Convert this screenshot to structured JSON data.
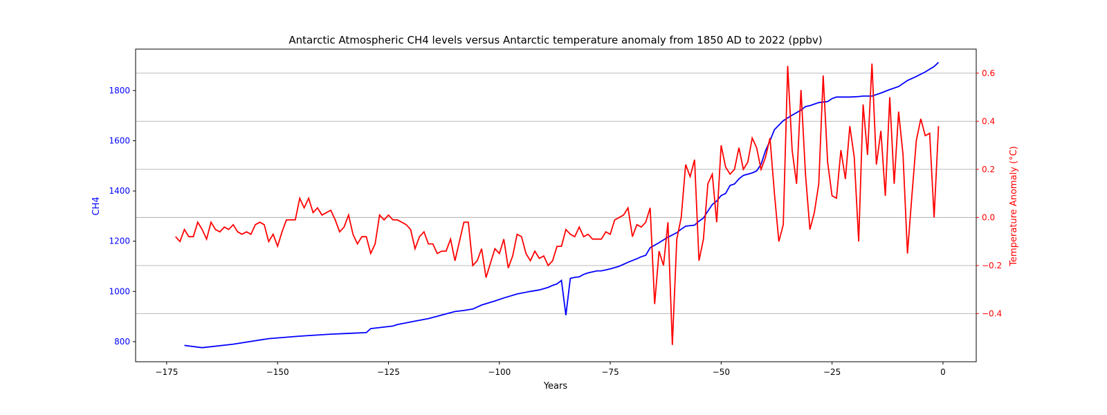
{
  "chart_data": {
    "type": "line",
    "title": "Antarctic Atmospheric CH4 levels versus Antarctic temperature anomaly from 1850 AD to 2022 (ppbv)",
    "xlabel": "Years",
    "ylabel": "CH4",
    "ylabel_right": "Temperature Anomaly (°C)",
    "xlim": [
      -182,
      7.5
    ],
    "ylim": [
      720,
      1965
    ],
    "ylim_right": [
      -0.6,
      0.7
    ],
    "x_ticks": [
      -175,
      -150,
      -125,
      -100,
      -75,
      -50,
      -25,
      0
    ],
    "y_ticks": [
      800,
      1000,
      1200,
      1400,
      1600,
      1800
    ],
    "y_ticks_right": [
      -0.4,
      -0.2,
      0.0,
      0.2,
      0.4,
      0.6
    ],
    "x_tick_labels": [
      "−175",
      "−150",
      "−125",
      "−100",
      "−75",
      "−50",
      "−25",
      "0"
    ],
    "y_tick_labels": [
      "800",
      "1000",
      "1200",
      "1400",
      "1600",
      "1800"
    ],
    "y_tick_labels_right": [
      "−0.4",
      "−0.2",
      "0.0",
      "0.2",
      "0.4",
      "0.6"
    ],
    "grid": "right-axis horizontal lines",
    "colors": {
      "ch4": "#0000ff",
      "temperature": "#ff0000",
      "grid": "#b0b0b0",
      "axes": "#000000"
    },
    "series": [
      {
        "key": "ch4",
        "axis": "left",
        "x": [
          -171,
          -167,
          -160,
          -152,
          -145,
          -138,
          -135,
          -130,
          -129,
          -124,
          -123,
          -119,
          -116,
          -113,
          -110,
          -108,
          -106,
          -104,
          -101,
          -99,
          -96,
          -93,
          -91,
          -89,
          -88,
          -87,
          -86,
          -85,
          -84,
          -83,
          -82,
          -81,
          -80,
          -78,
          -77,
          -75,
          -73,
          -71,
          -69,
          -68,
          -67,
          -66,
          -64,
          -62,
          -60,
          -59,
          -58,
          -56,
          -55,
          -54,
          -53,
          -52,
          -51,
          -50,
          -49,
          -48,
          -47,
          -46,
          -45,
          -43,
          -42,
          -41,
          -40,
          -39,
          -38,
          -36,
          -34,
          -32,
          -31,
          -30,
          -28,
          -26,
          -25,
          -24,
          -23,
          -21,
          -19,
          -18,
          -16,
          -14,
          -12,
          -10,
          -8,
          -6,
          -4,
          -2,
          -1
        ],
        "y": [
          785,
          776,
          790,
          812,
          822,
          830,
          832,
          836,
          852,
          862,
          868,
          882,
          892,
          906,
          920,
          924,
          930,
          946,
          962,
          974,
          990,
          1000,
          1006,
          1016,
          1024,
          1030,
          1044,
          905,
          1052,
          1056,
          1058,
          1068,
          1074,
          1082,
          1082,
          1090,
          1100,
          1116,
          1130,
          1138,
          1144,
          1174,
          1194,
          1216,
          1234,
          1248,
          1260,
          1264,
          1280,
          1292,
          1320,
          1346,
          1360,
          1382,
          1390,
          1422,
          1428,
          1448,
          1462,
          1472,
          1480,
          1506,
          1560,
          1600,
          1644,
          1680,
          1702,
          1722,
          1736,
          1740,
          1752,
          1756,
          1768,
          1774,
          1774,
          1774,
          1776,
          1778,
          1778,
          1790,
          1804,
          1816,
          1840,
          1856,
          1874,
          1896,
          1912
        ]
      },
      {
        "key": "temperature",
        "axis": "right",
        "x": [
          -173,
          -172,
          -171,
          -170,
          -169,
          -168,
          -167,
          -166,
          -165,
          -164,
          -163,
          -162,
          -161,
          -160,
          -159,
          -158,
          -157,
          -156,
          -155,
          -154,
          -153,
          -152,
          -151,
          -150,
          -149,
          -148,
          -147,
          -146,
          -145,
          -144,
          -143,
          -142,
          -141,
          -140,
          -139,
          -138,
          -137,
          -136,
          -135,
          -134,
          -133,
          -132,
          -131,
          -130,
          -129,
          -128,
          -127,
          -126,
          -125,
          -124,
          -123,
          -122,
          -121,
          -120,
          -119,
          -118,
          -117,
          -116,
          -115,
          -114,
          -113,
          -112,
          -111,
          -110,
          -109,
          -108,
          -107,
          -106,
          -105,
          -104,
          -103,
          -102,
          -101,
          -100,
          -99,
          -98,
          -97,
          -96,
          -95,
          -94,
          -93,
          -92,
          -91,
          -90,
          -89,
          -88,
          -87,
          -86,
          -85,
          -84,
          -83,
          -82,
          -81,
          -80,
          -79,
          -78,
          -77,
          -76,
          -75,
          -74,
          -73,
          -72,
          -71,
          -70,
          -69,
          -68,
          -67,
          -66,
          -65,
          -64,
          -63,
          -62,
          -61,
          -60,
          -59,
          -58,
          -57,
          -56,
          -55,
          -54,
          -53,
          -52,
          -51,
          -50,
          -49,
          -48,
          -47,
          -46,
          -45,
          -44,
          -43,
          -42,
          -41,
          -40,
          -39,
          -38,
          -37,
          -36,
          -35,
          -34,
          -33,
          -32,
          -31,
          -30,
          -29,
          -28,
          -27,
          -26,
          -25,
          -24,
          -23,
          -22,
          -21,
          -20,
          -19,
          -18,
          -17,
          -16,
          -15,
          -14,
          -13,
          -12,
          -11,
          -10,
          -9,
          -8,
          -7,
          -6,
          -5,
          -4,
          -3,
          -2,
          -1
        ],
        "y": [
          -0.08,
          -0.1,
          -0.05,
          -0.08,
          -0.08,
          -0.02,
          -0.05,
          -0.09,
          -0.02,
          -0.05,
          -0.06,
          -0.04,
          -0.05,
          -0.03,
          -0.06,
          -0.07,
          -0.06,
          -0.07,
          -0.03,
          -0.02,
          -0.03,
          -0.1,
          -0.07,
          -0.12,
          -0.06,
          -0.01,
          -0.01,
          -0.01,
          0.08,
          0.04,
          0.08,
          0.02,
          0.04,
          0.01,
          0.02,
          0.03,
          -0.01,
          -0.06,
          -0.04,
          0.01,
          -0.07,
          -0.11,
          -0.08,
          -0.08,
          -0.15,
          -0.11,
          0.01,
          -0.01,
          0.01,
          -0.01,
          -0.01,
          -0.02,
          -0.03,
          -0.05,
          -0.13,
          -0.08,
          -0.06,
          -0.11,
          -0.11,
          -0.15,
          -0.14,
          -0.14,
          -0.09,
          -0.18,
          -0.1,
          -0.02,
          -0.02,
          -0.2,
          -0.18,
          -0.13,
          -0.25,
          -0.19,
          -0.13,
          -0.15,
          -0.09,
          -0.21,
          -0.16,
          -0.07,
          -0.08,
          -0.15,
          -0.18,
          -0.14,
          -0.17,
          -0.16,
          -0.2,
          -0.18,
          -0.12,
          -0.12,
          -0.05,
          -0.07,
          -0.08,
          -0.04,
          -0.08,
          -0.07,
          -0.09,
          -0.09,
          -0.09,
          -0.06,
          -0.07,
          -0.01,
          0.0,
          0.01,
          0.04,
          -0.08,
          -0.03,
          -0.04,
          -0.02,
          0.04,
          -0.36,
          -0.14,
          -0.2,
          -0.02,
          -0.53,
          -0.09,
          0.0,
          0.22,
          0.17,
          0.24,
          -0.18,
          -0.09,
          0.14,
          0.18,
          -0.02,
          0.3,
          0.21,
          0.18,
          0.2,
          0.29,
          0.2,
          0.23,
          0.33,
          0.29,
          0.2,
          0.25,
          0.33,
          0.1,
          -0.1,
          -0.03,
          0.63,
          0.28,
          0.14,
          0.53,
          0.18,
          -0.05,
          0.02,
          0.14,
          0.59,
          0.23,
          0.09,
          0.08,
          0.28,
          0.16,
          0.38,
          0.25,
          -0.1,
          0.47,
          0.26,
          0.64,
          0.22,
          0.36,
          0.09,
          0.5,
          0.14,
          0.44,
          0.26,
          -0.15,
          0.09,
          0.32,
          0.41,
          0.34,
          0.35,
          0.0,
          0.38
        ]
      }
    ]
  }
}
